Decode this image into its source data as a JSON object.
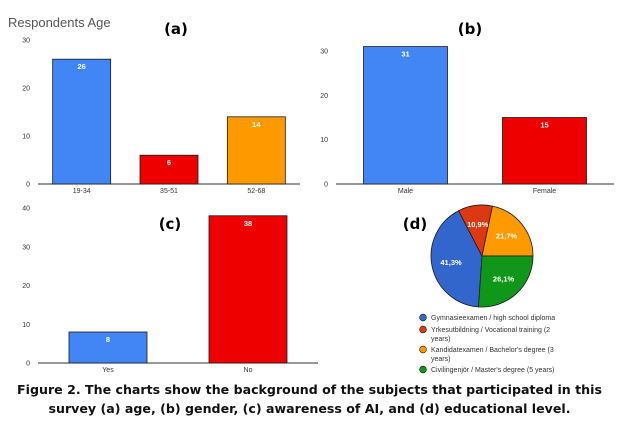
{
  "caption": "Figure 2.  The charts show the background of the subjects that participated in this survey (a) age, (b) gender, (c) awareness of AI, and (d) educational level.",
  "colors": {
    "blue": "#4285f4",
    "red": "#ee0000",
    "orange": "#ff9900",
    "green": "#109618",
    "pie_blue": "#3366cc",
    "pie_red": "#dc3912"
  },
  "chart_data": [
    {
      "type": "bar",
      "panel_label": "(a)",
      "title": "Respondents Age",
      "categories": [
        "19-34",
        "35-51",
        "52-68"
      ],
      "values": [
        26,
        6,
        14
      ],
      "value_labels": [
        "26",
        "6",
        "14"
      ],
      "bar_colors": [
        "#4285f4",
        "#ee0000",
        "#ff9900"
      ],
      "ylim": [
        0,
        30
      ],
      "yticks": [
        "0",
        "10",
        "20",
        "30"
      ],
      "grid": false
    },
    {
      "type": "bar",
      "panel_label": "(b)",
      "categories": [
        "Male",
        "Female"
      ],
      "values": [
        31,
        15
      ],
      "value_labels": [
        "31",
        "15"
      ],
      "bar_colors": [
        "#4285f4",
        "#ee0000"
      ],
      "ylim": [
        0,
        30
      ],
      "yticks": [
        "0",
        "10",
        "20",
        "30"
      ],
      "grid": false
    },
    {
      "type": "bar",
      "panel_label": "(c)",
      "categories": [
        "Yes",
        "No"
      ],
      "values": [
        8,
        38
      ],
      "value_labels": [
        "8",
        "38"
      ],
      "bar_colors": [
        "#4285f4",
        "#ee0000"
      ],
      "ylim": [
        0,
        40
      ],
      "yticks": [
        "0",
        "10",
        "20",
        "30",
        "40"
      ],
      "grid": false
    },
    {
      "type": "pie",
      "panel_label": "(d)",
      "slices": [
        {
          "label": "Gymnasieexamen / high school diploma",
          "value": 41.3,
          "text": "41,3%",
          "color": "#3366cc"
        },
        {
          "label": "Yrkesutbildning / Vocational training (2 years)",
          "value": 10.9,
          "text": "10,9%",
          "color": "#dc3912"
        },
        {
          "label": "Kandidatexamen / Bachelor's degree (3 years)",
          "value": 21.7,
          "text": "21,7%",
          "color": "#ff9900"
        },
        {
          "label": "Civilingenjör / Master's degree (5 years)",
          "value": 26.1,
          "text": "26,1%",
          "color": "#109618"
        }
      ],
      "legend_placement": "bottom"
    }
  ]
}
